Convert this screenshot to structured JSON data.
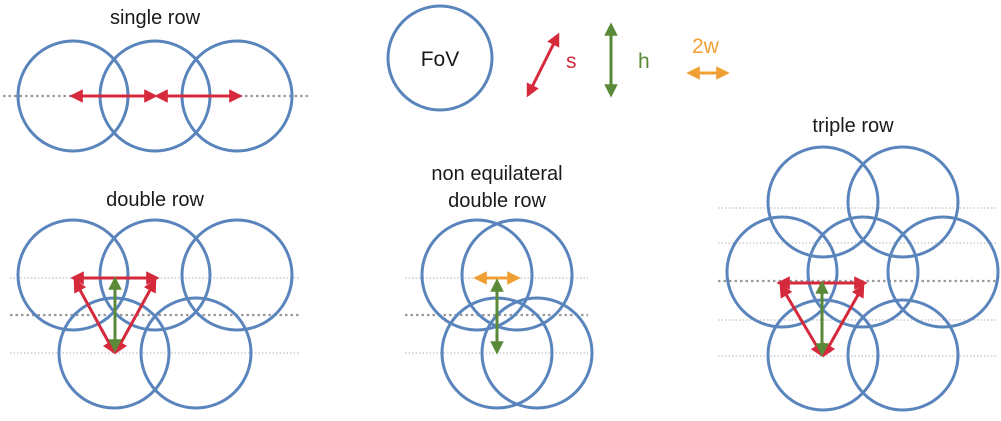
{
  "colors": {
    "circle": "#5a84bc",
    "s_arrow": "#d42a3c",
    "h_arrow": "#5a8a37",
    "w_arrow": "#f0a032",
    "axis": "#9a9a9a",
    "text": "#1a1a1a"
  },
  "legend": {
    "fov_label": "FoV",
    "s_label": "s",
    "h_label": "h",
    "w_label": "2w"
  },
  "panels": {
    "single_row": {
      "title": "single row"
    },
    "double_row": {
      "title": "double row"
    },
    "non_equilateral": {
      "title_line1": "non equilateral",
      "title_line2": "double row"
    },
    "triple_row": {
      "title": "triple row"
    }
  }
}
